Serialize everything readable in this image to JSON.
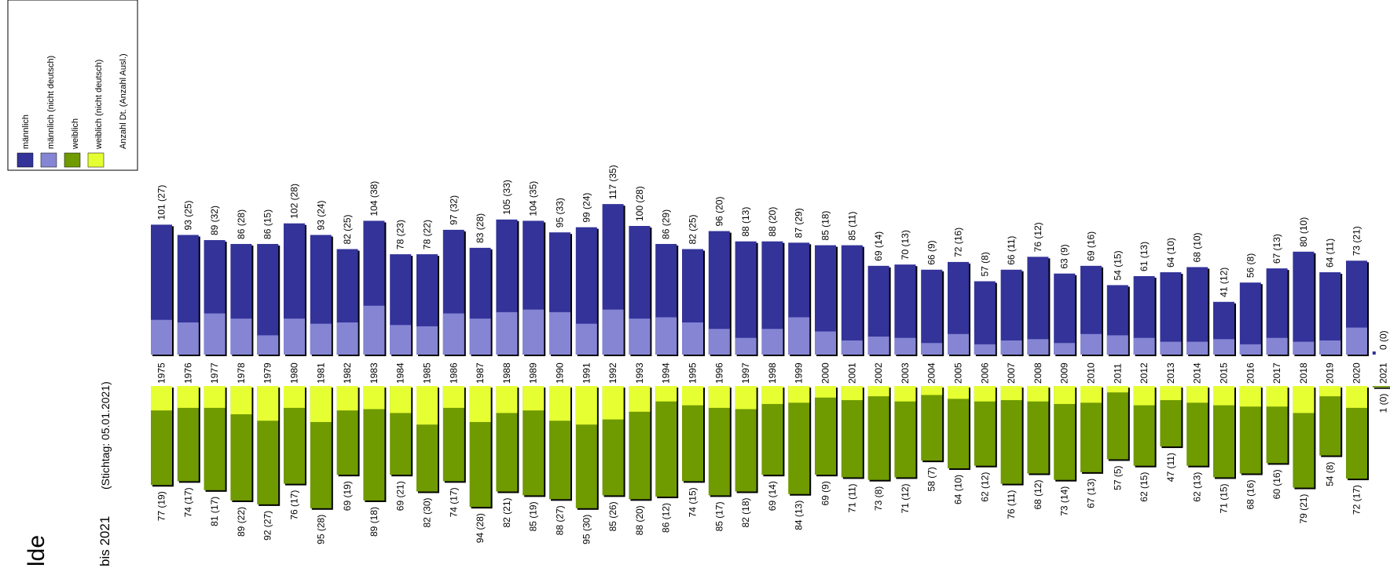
{
  "title_fragment": "lde",
  "subtitle_fragment": "bis 2021",
  "stichtag": "(Stichtag: 05.01.2021)",
  "legend": [
    {
      "label": "männlich",
      "color": "#33339a"
    },
    {
      "label": "männlich (nicht deutsch)",
      "color": "#8585d4"
    },
    {
      "label": "weiblich",
      "color": "#6f9a00"
    },
    {
      "label": "weiblich (nicht deutsch)",
      "color": "#e6ff33"
    },
    {
      "label": "Anzahl Dt. (Anzahl Ausl.)",
      "color": ""
    }
  ],
  "chart_data": {
    "type": "bar",
    "categories": [
      "1975",
      "1976",
      "1977",
      "1978",
      "1979",
      "1980",
      "1981",
      "1982",
      "1983",
      "1984",
      "1985",
      "1986",
      "1987",
      "1988",
      "1989",
      "1990",
      "1991",
      "1992",
      "1993",
      "1994",
      "1995",
      "1996",
      "1997",
      "1998",
      "1999",
      "2000",
      "2001",
      "2002",
      "2003",
      "2004",
      "2005",
      "2006",
      "2007",
      "2008",
      "2009",
      "2010",
      "2011",
      "2012",
      "2013",
      "2014",
      "2015",
      "2016",
      "2017",
      "2018",
      "2019",
      "2020",
      "2021"
    ],
    "series": [
      {
        "name": "männlich",
        "values": [
          101,
          93,
          89,
          86,
          86,
          102,
          93,
          82,
          104,
          78,
          78,
          97,
          83,
          105,
          104,
          95,
          99,
          117,
          100,
          86,
          82,
          96,
          88,
          88,
          87,
          85,
          85,
          69,
          70,
          66,
          72,
          57,
          66,
          76,
          63,
          69,
          54,
          61,
          64,
          68,
          41,
          56,
          67,
          80,
          64,
          73,
          0
        ]
      },
      {
        "name": "männlich (nicht deutsch)",
        "values": [
          27,
          25,
          32,
          28,
          15,
          28,
          24,
          25,
          38,
          23,
          22,
          32,
          28,
          33,
          35,
          33,
          24,
          35,
          28,
          29,
          25,
          20,
          13,
          20,
          29,
          18,
          11,
          14,
          13,
          9,
          16,
          8,
          11,
          12,
          9,
          16,
          15,
          13,
          10,
          10,
          12,
          8,
          13,
          10,
          11,
          21,
          0
        ]
      },
      {
        "name": "weiblich",
        "values": [
          77,
          74,
          81,
          89,
          92,
          76,
          95,
          69,
          89,
          69,
          82,
          74,
          94,
          82,
          85,
          88,
          95,
          85,
          88,
          86,
          74,
          85,
          82,
          69,
          84,
          69,
          71,
          73,
          71,
          58,
          64,
          62,
          76,
          68,
          73,
          67,
          57,
          62,
          47,
          62,
          71,
          68,
          60,
          79,
          54,
          72,
          1
        ]
      },
      {
        "name": "weiblich (nicht deutsch)",
        "values": [
          19,
          17,
          17,
          22,
          27,
          17,
          28,
          19,
          18,
          21,
          30,
          17,
          28,
          21,
          19,
          27,
          30,
          26,
          20,
          12,
          15,
          17,
          18,
          14,
          13,
          9,
          11,
          8,
          12,
          7,
          10,
          12,
          11,
          12,
          14,
          13,
          5,
          15,
          11,
          13,
          15,
          16,
          16,
          21,
          8,
          17,
          0
        ]
      }
    ]
  }
}
